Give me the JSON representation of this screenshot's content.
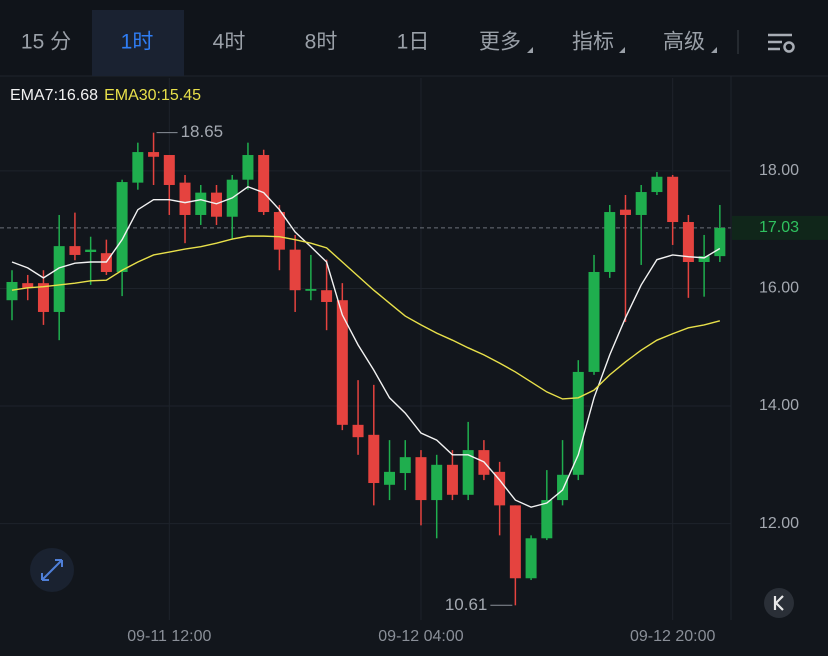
{
  "tabs": [
    "15 分",
    "1时",
    "4时",
    "8时",
    "1日",
    "更多",
    "指标",
    "高级"
  ],
  "active_tab": 1,
  "chart_data": {
    "type": "candlestick",
    "categories": [
      null,
      null,
      null,
      null,
      null,
      null,
      null,
      null,
      null,
      null,
      "09-11 12:00",
      null,
      null,
      null,
      null,
      null,
      null,
      null,
      null,
      null,
      null,
      null,
      null,
      null,
      null,
      null,
      "09-12 04:00",
      null,
      null,
      null,
      null,
      null,
      null,
      null,
      null,
      null,
      null,
      null,
      null,
      null,
      null,
      null,
      "09-12 20:00",
      null,
      null,
      null
    ],
    "open": [
      15.8,
      16.09,
      16.09,
      15.6,
      16.72,
      16.62,
      16.6,
      16.28,
      17.8,
      18.32,
      18.27,
      17.8,
      17.25,
      17.63,
      17.22,
      17.85,
      18.27,
      17.3,
      16.66,
      15.96,
      15.97,
      15.8,
      13.68,
      13.51,
      12.66,
      12.86,
      13.13,
      12.4,
      13.0,
      12.49,
      13.25,
      12.88,
      12.31,
      11.07,
      11.75,
      12.4,
      12.83,
      14.58,
      16.28,
      17.34,
      17.25,
      17.64,
      17.9,
      17.13,
      16.45,
      16.55
    ],
    "high": [
      16.31,
      16.23,
      16.31,
      17.25,
      17.29,
      16.88,
      16.83,
      17.85,
      18.48,
      18.65,
      18.27,
      17.93,
      17.76,
      17.76,
      17.93,
      18.48,
      18.36,
      17.42,
      16.91,
      16.57,
      16.49,
      16.09,
      14.44,
      14.36,
      13.42,
      13.42,
      13.25,
      13.17,
      13.25,
      13.73,
      13.42,
      13.05,
      12.31,
      11.8,
      12.91,
      13.42,
      14.78,
      16.57,
      17.42,
      17.59,
      17.76,
      17.98,
      17.93,
      17.25,
      16.91,
      17.42
    ],
    "low": [
      15.46,
      15.8,
      15.38,
      15.12,
      16.48,
      16.06,
      16.23,
      15.87,
      17.68,
      17.76,
      17.25,
      16.77,
      17.08,
      17.08,
      16.83,
      17.68,
      17.25,
      16.31,
      15.6,
      15.8,
      15.29,
      13.59,
      13.17,
      12.31,
      12.4,
      12.57,
      11.97,
      11.75,
      12.4,
      12.4,
      12.74,
      11.8,
      10.61,
      11.04,
      11.72,
      12.31,
      12.74,
      14.53,
      16.18,
      15.43,
      16.4,
      17.59,
      16.74,
      15.84,
      15.86,
      16.45
    ],
    "close": [
      16.11,
      16.01,
      15.6,
      16.72,
      16.57,
      16.66,
      16.28,
      17.81,
      18.32,
      18.24,
      17.76,
      17.25,
      17.63,
      17.22,
      17.85,
      18.27,
      17.3,
      16.66,
      15.97,
      15.99,
      15.77,
      13.68,
      13.47,
      12.69,
      12.88,
      13.13,
      12.4,
      13.0,
      12.49,
      13.25,
      12.83,
      12.31,
      11.07,
      11.75,
      12.4,
      12.83,
      14.58,
      16.28,
      17.3,
      17.25,
      17.64,
      17.9,
      17.13,
      16.45,
      16.55,
      17.03
    ],
    "up_color": "#1fae4e",
    "down_color": "#e5433f",
    "series": [
      {
        "name": "EMA7:16.68",
        "color": "#f2f2f2",
        "values": [
          16.45,
          16.35,
          16.18,
          16.35,
          16.43,
          16.45,
          16.45,
          16.83,
          17.34,
          17.51,
          17.51,
          17.46,
          17.51,
          17.44,
          17.54,
          17.73,
          17.63,
          17.34,
          16.96,
          16.71,
          16.45,
          15.55,
          15.04,
          14.61,
          14.14,
          13.88,
          13.54,
          13.42,
          13.17,
          13.17,
          13.05,
          12.74,
          12.4,
          12.28,
          12.35,
          12.57,
          13.17,
          14.14,
          14.87,
          15.5,
          16.06,
          16.49,
          16.57,
          16.54,
          16.52,
          16.68
        ]
      },
      {
        "name": "EMA30:15.45",
        "color": "#e8e04a",
        "values": [
          15.97,
          16.01,
          16.03,
          16.06,
          16.09,
          16.13,
          16.14,
          16.31,
          16.45,
          16.57,
          16.62,
          16.67,
          16.71,
          16.77,
          16.84,
          16.89,
          16.89,
          16.88,
          16.83,
          16.77,
          16.69,
          16.45,
          16.21,
          15.97,
          15.75,
          15.53,
          15.38,
          15.24,
          15.12,
          14.99,
          14.87,
          14.73,
          14.58,
          14.41,
          14.24,
          14.12,
          14.14,
          14.27,
          14.53,
          14.75,
          14.95,
          15.12,
          15.23,
          15.33,
          15.38,
          15.45
        ]
      }
    ],
    "ylim": [
      10.36,
      19.58
    ],
    "yticks": [
      {
        "value": 12,
        "label": "12.00"
      },
      {
        "value": 14,
        "label": "14.00"
      },
      {
        "value": 16,
        "label": "16.00"
      },
      {
        "value": 18,
        "label": "18.00"
      }
    ],
    "last_price": 17.03,
    "max_label": 18.65,
    "min_label": 10.61,
    "grid": true
  }
}
